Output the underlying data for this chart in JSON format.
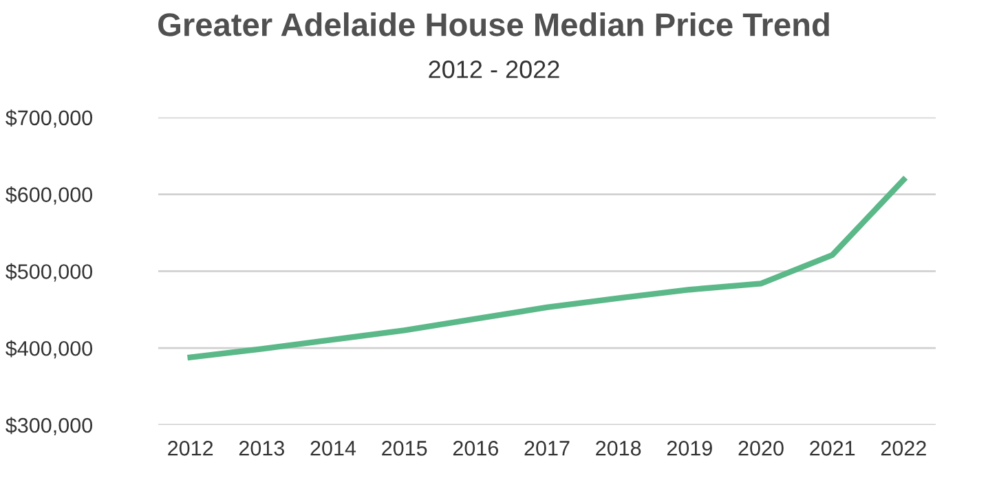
{
  "chart_data": {
    "type": "line",
    "title": "Greater Adelaide House Median Price Trend",
    "subtitle": "2012 - 2022",
    "categories": [
      "2012",
      "2013",
      "2014",
      "2015",
      "2016",
      "2017",
      "2018",
      "2019",
      "2020",
      "2021",
      "2022"
    ],
    "series": [
      {
        "color": "#5bb888",
        "values": [
          388000,
          399000,
          411000,
          423000,
          438000,
          453000,
          465000,
          476000,
          484000,
          521000,
          619000
        ]
      }
    ],
    "ylim": [
      300000,
      700000
    ],
    "yticks": [
      {
        "value": 300000,
        "label": "$300,000"
      },
      {
        "value": 400000,
        "label": "$400,000"
      },
      {
        "value": 500000,
        "label": "$500,000"
      },
      {
        "value": 600000,
        "label": "$600,000"
      },
      {
        "value": 700000,
        "label": "$700,000"
      }
    ],
    "grid": "y",
    "legend": false,
    "marker": "none",
    "line_style": "solid"
  }
}
